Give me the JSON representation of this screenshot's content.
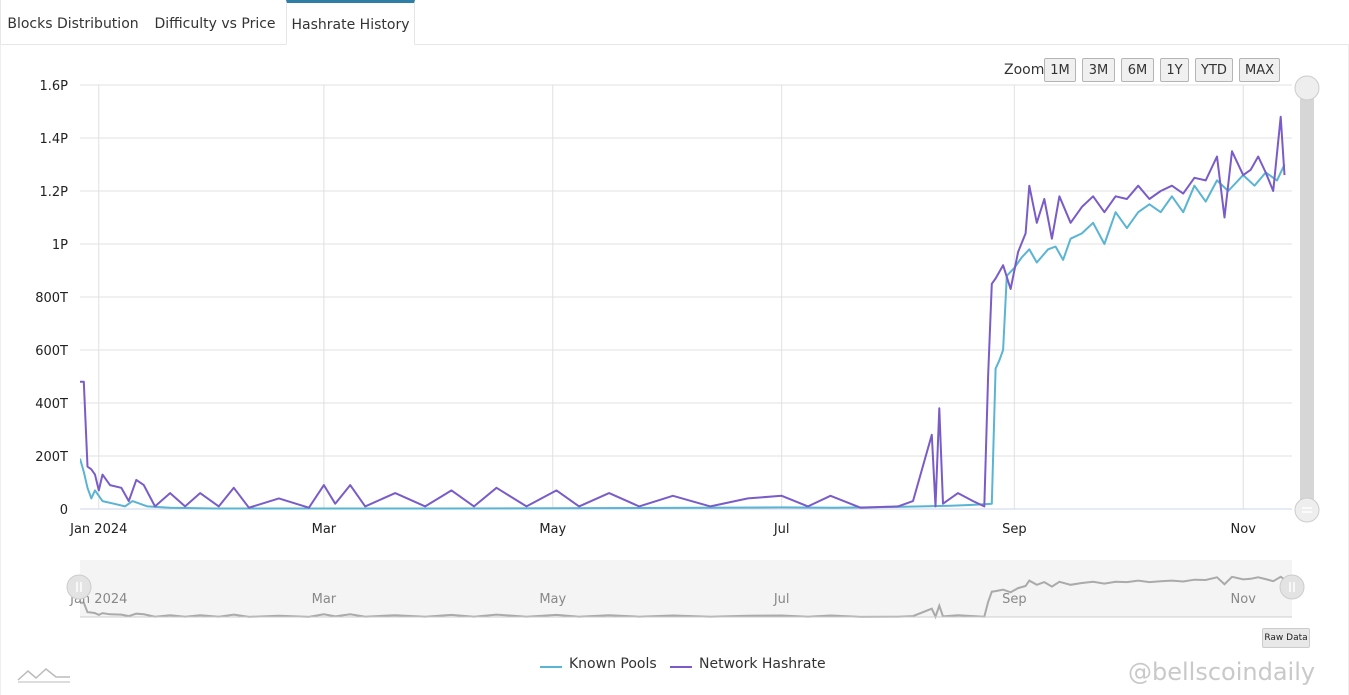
{
  "tabs": [
    "Blocks Distribution",
    "Difficulty vs Price",
    "Hashrate History"
  ],
  "active_tab": 2,
  "zoom": {
    "label": "Zoom",
    "buttons": [
      "1M",
      "3M",
      "6M",
      "1Y",
      "YTD",
      "MAX"
    ]
  },
  "raw_data_label": "Raw Data",
  "watermark": "@bellscoindaily",
  "colors": {
    "known_pools": "#5ab4d3",
    "network_hashrate": "#7a5cc8",
    "tab_accent": "#2f7ea6",
    "grid": "#e0e0e0",
    "navigator": "#aaaaaa"
  },
  "chart_data": {
    "type": "line",
    "title": "",
    "xlabel": "",
    "ylabel": "",
    "ylim": [
      0,
      1600000000000000.0
    ],
    "y_ticks": [
      {
        "value": 0,
        "label": "0"
      },
      {
        "value": 200000000000000.0,
        "label": "200T"
      },
      {
        "value": 400000000000000.0,
        "label": "400T"
      },
      {
        "value": 600000000000000.0,
        "label": "600T"
      },
      {
        "value": 800000000000000.0,
        "label": "800T"
      },
      {
        "value": 1000000000000000.0,
        "label": "1P"
      },
      {
        "value": 1200000000000000.0,
        "label": "1.2P"
      },
      {
        "value": 1400000000000000.0,
        "label": "1.4P"
      },
      {
        "value": 1600000000000000.0,
        "label": "1.6P"
      }
    ],
    "xlim": [
      "2023-12-27",
      "2024-11-14"
    ],
    "x_ticks": [
      {
        "date": "2024-01-01",
        "label": "Jan 2024"
      },
      {
        "date": "2024-03-01",
        "label": "Mar"
      },
      {
        "date": "2024-05-01",
        "label": "May"
      },
      {
        "date": "2024-07-01",
        "label": "Jul"
      },
      {
        "date": "2024-09-01",
        "label": "Sep"
      },
      {
        "date": "2024-11-01",
        "label": "Nov"
      }
    ],
    "grid": true,
    "legend_position": "bottom-center",
    "series": [
      {
        "name": "Known Pools",
        "color": "#5ab4d3",
        "points": [
          [
            "2023-12-27",
            190000000000000.0
          ],
          [
            "2023-12-28",
            140000000000000.0
          ],
          [
            "2023-12-29",
            80000000000000.0
          ],
          [
            "2023-12-30",
            40000000000000.0
          ],
          [
            "2023-12-31",
            70000000000000.0
          ],
          [
            "2024-01-02",
            30000000000000.0
          ],
          [
            "2024-01-05",
            20000000000000.0
          ],
          [
            "2024-01-08",
            10000000000000.0
          ],
          [
            "2024-01-10",
            30000000000000.0
          ],
          [
            "2024-01-14",
            10000000000000.0
          ],
          [
            "2024-01-20",
            5000000000000.0
          ],
          [
            "2024-02-01",
            2000000000000.0
          ],
          [
            "2024-03-01",
            2000000000000.0
          ],
          [
            "2024-04-01",
            2000000000000.0
          ],
          [
            "2024-05-01",
            3000000000000.0
          ],
          [
            "2024-06-01",
            4000000000000.0
          ],
          [
            "2024-07-01",
            6000000000000.0
          ],
          [
            "2024-07-15",
            5000000000000.0
          ],
          [
            "2024-08-01",
            8000000000000.0
          ],
          [
            "2024-08-15",
            12000000000000.0
          ],
          [
            "2024-08-20",
            15000000000000.0
          ],
          [
            "2024-08-24",
            18000000000000.0
          ],
          [
            "2024-08-26",
            20000000000000.0
          ],
          [
            "2024-08-27",
            530000000000000.0
          ],
          [
            "2024-08-28",
            560000000000000.0
          ],
          [
            "2024-08-29",
            600000000000000.0
          ],
          [
            "2024-08-30",
            880000000000000.0
          ],
          [
            "2024-09-01",
            910000000000000.0
          ],
          [
            "2024-09-03",
            950000000000000.0
          ],
          [
            "2024-09-05",
            980000000000000.0
          ],
          [
            "2024-09-07",
            930000000000000.0
          ],
          [
            "2024-09-10",
            980000000000000.0
          ],
          [
            "2024-09-12",
            990000000000000.0
          ],
          [
            "2024-09-14",
            940000000000000.0
          ],
          [
            "2024-09-16",
            1020000000000000.0
          ],
          [
            "2024-09-19",
            1040000000000000.0
          ],
          [
            "2024-09-22",
            1080000000000000.0
          ],
          [
            "2024-09-25",
            1000000000000000.0
          ],
          [
            "2024-09-28",
            1120000000000000.0
          ],
          [
            "2024-10-01",
            1060000000000000.0
          ],
          [
            "2024-10-04",
            1120000000000000.0
          ],
          [
            "2024-10-07",
            1150000000000000.0
          ],
          [
            "2024-10-10",
            1120000000000000.0
          ],
          [
            "2024-10-13",
            1180000000000000.0
          ],
          [
            "2024-10-16",
            1120000000000000.0
          ],
          [
            "2024-10-19",
            1220000000000000.0
          ],
          [
            "2024-10-22",
            1160000000000000.0
          ],
          [
            "2024-10-25",
            1240000000000000.0
          ],
          [
            "2024-10-28",
            1200000000000000.0
          ],
          [
            "2024-11-01",
            1260000000000000.0
          ],
          [
            "2024-11-04",
            1220000000000000.0
          ],
          [
            "2024-11-07",
            1270000000000000.0
          ],
          [
            "2024-11-10",
            1240000000000000.0
          ],
          [
            "2024-11-12",
            1300000000000000.0
          ]
        ]
      },
      {
        "name": "Network Hashrate",
        "color": "#7a5cc8",
        "points": [
          [
            "2023-12-27",
            480000000000000.0
          ],
          [
            "2023-12-28",
            480000000000000.0
          ],
          [
            "2023-12-29",
            160000000000000.0
          ],
          [
            "2023-12-30",
            150000000000000.0
          ],
          [
            "2023-12-31",
            130000000000000.0
          ],
          [
            "2024-01-01",
            70000000000000.0
          ],
          [
            "2024-01-02",
            130000000000000.0
          ],
          [
            "2024-01-04",
            90000000000000.0
          ],
          [
            "2024-01-07",
            80000000000000.0
          ],
          [
            "2024-01-09",
            30000000000000.0
          ],
          [
            "2024-01-11",
            110000000000000.0
          ],
          [
            "2024-01-13",
            90000000000000.0
          ],
          [
            "2024-01-16",
            10000000000000.0
          ],
          [
            "2024-01-20",
            60000000000000.0
          ],
          [
            "2024-01-24",
            10000000000000.0
          ],
          [
            "2024-01-28",
            60000000000000.0
          ],
          [
            "2024-02-02",
            10000000000000.0
          ],
          [
            "2024-02-06",
            80000000000000.0
          ],
          [
            "2024-02-10",
            5000000000000.0
          ],
          [
            "2024-02-18",
            40000000000000.0
          ],
          [
            "2024-02-26",
            5000000000000.0
          ],
          [
            "2024-03-01",
            90000000000000.0
          ],
          [
            "2024-03-04",
            20000000000000.0
          ],
          [
            "2024-03-08",
            90000000000000.0
          ],
          [
            "2024-03-12",
            10000000000000.0
          ],
          [
            "2024-03-20",
            60000000000000.0
          ],
          [
            "2024-03-28",
            10000000000000.0
          ],
          [
            "2024-04-04",
            70000000000000.0
          ],
          [
            "2024-04-10",
            10000000000000.0
          ],
          [
            "2024-04-16",
            80000000000000.0
          ],
          [
            "2024-04-24",
            10000000000000.0
          ],
          [
            "2024-05-02",
            70000000000000.0
          ],
          [
            "2024-05-08",
            10000000000000.0
          ],
          [
            "2024-05-16",
            60000000000000.0
          ],
          [
            "2024-05-24",
            10000000000000.0
          ],
          [
            "2024-06-02",
            50000000000000.0
          ],
          [
            "2024-06-12",
            10000000000000.0
          ],
          [
            "2024-06-22",
            40000000000000.0
          ],
          [
            "2024-07-01",
            50000000000000.0
          ],
          [
            "2024-07-08",
            10000000000000.0
          ],
          [
            "2024-07-14",
            50000000000000.0
          ],
          [
            "2024-07-22",
            5000000000000.0
          ],
          [
            "2024-08-01",
            10000000000000.0
          ],
          [
            "2024-08-05",
            30000000000000.0
          ],
          [
            "2024-08-10",
            280000000000000.0
          ],
          [
            "2024-08-11",
            10000000000000.0
          ],
          [
            "2024-08-12",
            380000000000000.0
          ],
          [
            "2024-08-13",
            20000000000000.0
          ],
          [
            "2024-08-17",
            60000000000000.0
          ],
          [
            "2024-08-21",
            30000000000000.0
          ],
          [
            "2024-08-24",
            10000000000000.0
          ],
          [
            "2024-08-25",
            500000000000000.0
          ],
          [
            "2024-08-26",
            850000000000000.0
          ],
          [
            "2024-08-27",
            870000000000000.0
          ],
          [
            "2024-08-29",
            920000000000000.0
          ],
          [
            "2024-08-31",
            830000000000000.0
          ],
          [
            "2024-09-02",
            970000000000000.0
          ],
          [
            "2024-09-04",
            1040000000000000.0
          ],
          [
            "2024-09-05",
            1220000000000000.0
          ],
          [
            "2024-09-07",
            1080000000000000.0
          ],
          [
            "2024-09-09",
            1170000000000000.0
          ],
          [
            "2024-09-11",
            1020000000000000.0
          ],
          [
            "2024-09-13",
            1180000000000000.0
          ],
          [
            "2024-09-16",
            1080000000000000.0
          ],
          [
            "2024-09-19",
            1140000000000000.0
          ],
          [
            "2024-09-22",
            1180000000000000.0
          ],
          [
            "2024-09-25",
            1120000000000000.0
          ],
          [
            "2024-09-28",
            1180000000000000.0
          ],
          [
            "2024-10-01",
            1170000000000000.0
          ],
          [
            "2024-10-04",
            1220000000000000.0
          ],
          [
            "2024-10-07",
            1170000000000000.0
          ],
          [
            "2024-10-10",
            1200000000000000.0
          ],
          [
            "2024-10-13",
            1220000000000000.0
          ],
          [
            "2024-10-16",
            1190000000000000.0
          ],
          [
            "2024-10-19",
            1250000000000000.0
          ],
          [
            "2024-10-22",
            1240000000000000.0
          ],
          [
            "2024-10-25",
            1330000000000000.0
          ],
          [
            "2024-10-27",
            1100000000000000.0
          ],
          [
            "2024-10-29",
            1350000000000000.0
          ],
          [
            "2024-11-01",
            1260000000000000.0
          ],
          [
            "2024-11-03",
            1280000000000000.0
          ],
          [
            "2024-11-05",
            1330000000000000.0
          ],
          [
            "2024-11-07",
            1270000000000000.0
          ],
          [
            "2024-11-09",
            1200000000000000.0
          ],
          [
            "2024-11-11",
            1480000000000000.0
          ],
          [
            "2024-11-12",
            1260000000000000.0
          ]
        ]
      }
    ],
    "navigator": {
      "x_ticks": [
        "Jan 2024",
        "Mar",
        "May",
        "Jul",
        "Sep",
        "Nov"
      ]
    }
  }
}
